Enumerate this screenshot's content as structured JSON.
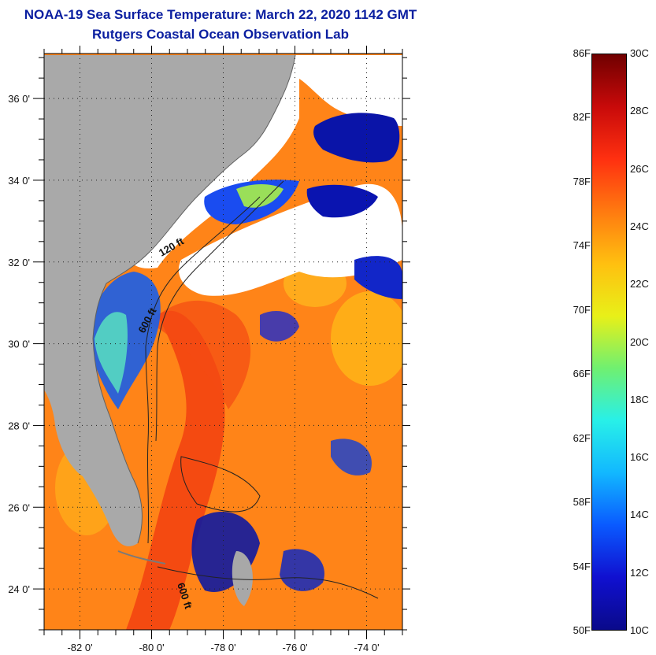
{
  "header": {
    "title": "NOAA-19 Sea Surface Temperature:  March 22, 2020 1142 GMT",
    "subtitle": "Rutgers Coastal Ocean Observation Lab"
  },
  "map": {
    "latitude_labels": [
      "36 0'",
      "34 0'",
      "32 0'",
      "30 0'",
      "28 0'",
      "26 0'",
      "24 0'"
    ],
    "latitudes": [
      36,
      34,
      32,
      30,
      28,
      26,
      24
    ],
    "longitude_labels": [
      "-82 0'",
      "-80 0'",
      "-78 0'",
      "-76 0'",
      "-74 0'"
    ],
    "longitudes": [
      -82,
      -80,
      -78,
      -76,
      -74
    ],
    "lat_range": [
      23,
      37.1
    ],
    "lon_range": [
      -83,
      -73
    ],
    "isobath_labels": [
      "120 ft",
      "600 ft",
      "600 ft"
    ],
    "colors": {
      "land": "#a9a9a9",
      "cloud": "#ffffff",
      "cold_water": "#0a0f9a",
      "warm_water": "#ff7a10",
      "gulf_stream": "#f23a08"
    }
  },
  "colorbar": {
    "fahrenheit_labels": [
      "86F",
      "82F",
      "78F",
      "74F",
      "70F",
      "66F",
      "62F",
      "58F",
      "54F",
      "50F"
    ],
    "celsius_labels": [
      "30C",
      "28C",
      "26C",
      "24C",
      "22C",
      "20C",
      "18C",
      "16C",
      "14C",
      "12C",
      "10C"
    ],
    "f_range": [
      50,
      86
    ],
    "c_range": [
      10,
      30
    ],
    "gradient": [
      "#0a0a8a",
      "#1010d0",
      "#0a5aff",
      "#12b8ff",
      "#28f0e8",
      "#70f070",
      "#e8f018",
      "#ffc010",
      "#ff7a10",
      "#ff3010",
      "#c80a0a",
      "#700000"
    ]
  }
}
